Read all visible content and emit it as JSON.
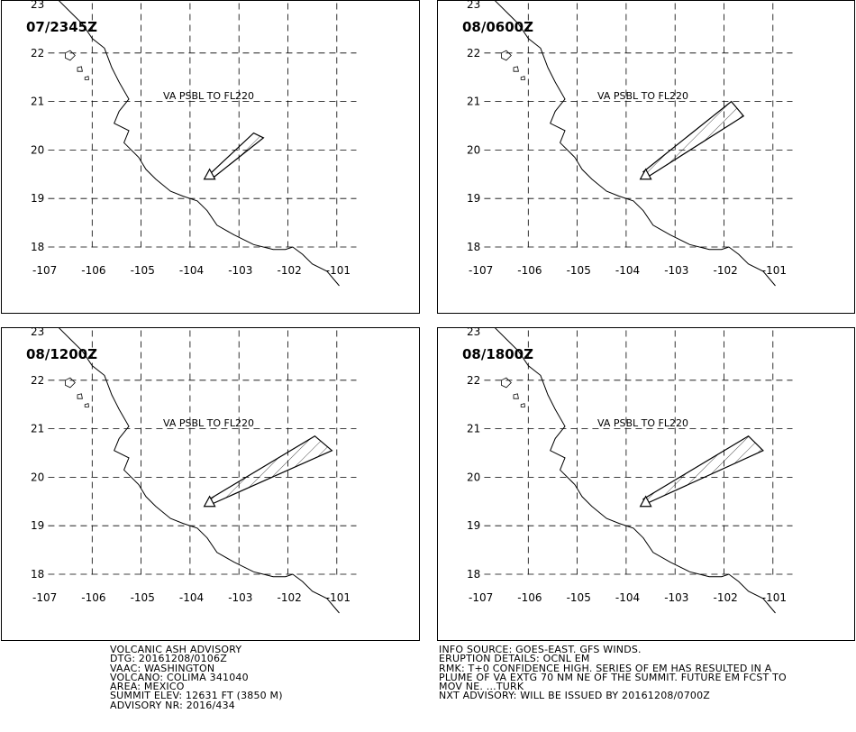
{
  "panels": [
    {
      "id": "p1",
      "time_label": "07/2345Z",
      "annotation": "VA PSBL TO FL220",
      "plume": [
        [
          -103.6,
          19.5
        ],
        [
          -102.7,
          20.35
        ],
        [
          -102.5,
          20.25
        ],
        [
          -103.5,
          19.45
        ]
      ]
    },
    {
      "id": "p2",
      "time_label": "08/0600Z",
      "annotation": "VA PSBL TO FL220",
      "plume": [
        [
          -103.65,
          19.55
        ],
        [
          -101.85,
          21.0
        ],
        [
          -101.6,
          20.7
        ],
        [
          -103.55,
          19.45
        ]
      ]
    },
    {
      "id": "p3",
      "time_label": "08/1200Z",
      "annotation": "VA PSBL TO FL220",
      "plume": [
        [
          -103.6,
          19.55
        ],
        [
          -101.45,
          20.85
        ],
        [
          -101.1,
          20.55
        ],
        [
          -103.55,
          19.45
        ]
      ]
    },
    {
      "id": "p4",
      "time_label": "08/1800Z",
      "annotation": "VA PSBL TO FL220",
      "plume": [
        [
          -103.65,
          19.55
        ],
        [
          -101.5,
          20.85
        ],
        [
          -101.2,
          20.55
        ],
        [
          -103.6,
          19.45
        ]
      ]
    }
  ],
  "map": {
    "lon_labels": [
      "-107",
      "-106",
      "-105",
      "-104",
      "-103",
      "-102",
      "-101"
    ],
    "lat_labels": [
      "18",
      "19",
      "20",
      "21",
      "22",
      "23"
    ],
    "volcano": [
      -103.6,
      19.51
    ]
  },
  "advisory_left": [
    "VOLCANIC ASH ADVISORY",
    "DTG: 20161208/0106Z",
    "VAAC: WASHINGTON",
    "VOLCANO: COLIMA 341040",
    "AREA: MEXICO",
    "SUMMIT ELEV: 12631 FT (3850 M)",
    "ADVISORY NR: 2016/434"
  ],
  "advisory_right": [
    "INFO SOURCE: GOES-EAST. GFS WINDS.",
    "ERUPTION DETAILS: OCNL EM",
    "RMK: T+0 CONFIDENCE HIGH. SERIES OF EM HAS RESULTED IN A",
    "PLUME OF VA EXTG 70 NM NE OF THE SUMMIT. FUTURE EM FCST TO",
    "MOV NE. ...TURK",
    "NXT ADVISORY: WILL BE ISSUED BY 20161208/0700Z"
  ]
}
